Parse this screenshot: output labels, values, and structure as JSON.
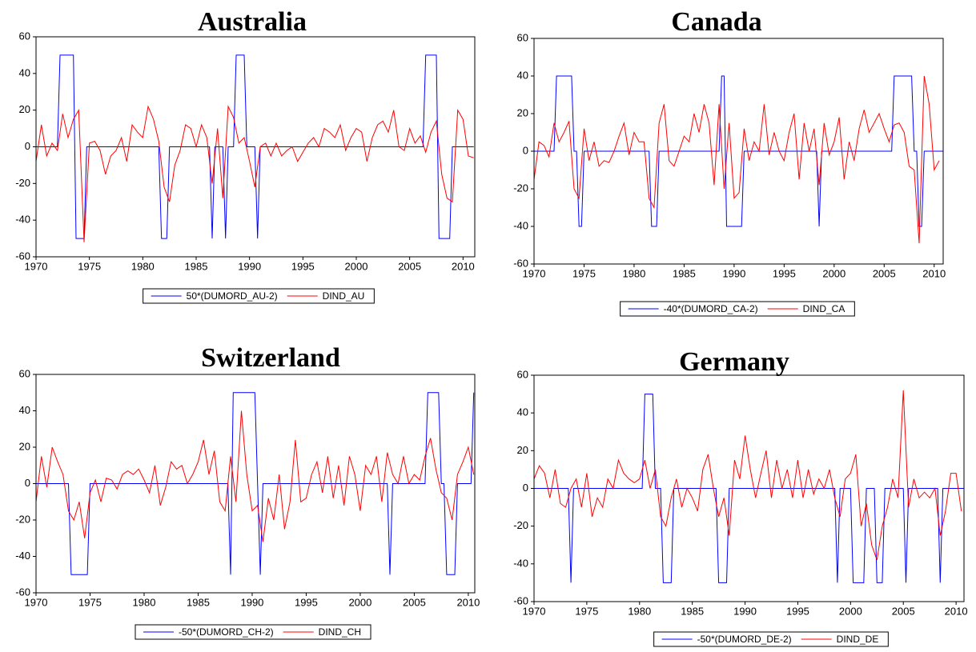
{
  "chart_data": [
    {
      "type": "line",
      "title": "Australia",
      "xlim": [
        1970,
        2011.1
      ],
      "ylim": [
        -60,
        60
      ],
      "xticks": [
        1970,
        1975,
        1980,
        1985,
        1990,
        1995,
        2000,
        2005,
        2010
      ],
      "yticks": [
        -60,
        -40,
        -20,
        0,
        20,
        40,
        60
      ],
      "legend": "bottom",
      "series": [
        {
          "name": "50*(DUMORD_AU-2)",
          "color": "#0000ff",
          "x": [
            1970,
            1972,
            1972.25,
            1973.5,
            1973.75,
            1974.5,
            1974.75,
            1981.5,
            1981.75,
            1982.25,
            1982.5,
            1986.25,
            1986.5,
            1986.75,
            1987.5,
            1987.75,
            1988,
            1988.5,
            1988.75,
            1989.5,
            1989.75,
            1990.5,
            1990.75,
            1991,
            2006.25,
            2006.5,
            2007.5,
            2007.75,
            2008.75,
            2009,
            2011
          ],
          "values": [
            0,
            0,
            50,
            50,
            -50,
            -50,
            0,
            0,
            -50,
            -50,
            0,
            0,
            -50,
            0,
            0,
            -50,
            0,
            0,
            50,
            50,
            0,
            0,
            -50,
            0,
            0,
            50,
            50,
            -50,
            -50,
            0,
            0
          ]
        },
        {
          "name": "DIND_AU",
          "color": "#ff0000",
          "x": [
            1970,
            1970.5,
            1971,
            1971.5,
            1972,
            1972.5,
            1973,
            1973.5,
            1974,
            1974.5,
            1975,
            1975.5,
            1976,
            1976.5,
            1977,
            1977.5,
            1978,
            1978.5,
            1979,
            1979.5,
            1980,
            1980.5,
            1981,
            1981.5,
            1982,
            1982.5,
            1983,
            1983.5,
            1984,
            1984.5,
            1985,
            1985.5,
            1986,
            1986.5,
            1987,
            1987.5,
            1988,
            1988.5,
            1989,
            1989.5,
            1990,
            1990.5,
            1991,
            1991.5,
            1992,
            1992.5,
            1993,
            1993.5,
            1994,
            1994.5,
            1995,
            1995.5,
            1996,
            1996.5,
            1997,
            1997.5,
            1998,
            1998.5,
            1999,
            1999.5,
            2000,
            2000.5,
            2001,
            2001.5,
            2002,
            2002.5,
            2003,
            2003.5,
            2004,
            2004.5,
            2005,
            2005.5,
            2006,
            2006.5,
            2007,
            2007.5,
            2008,
            2008.5,
            2009,
            2009.5,
            2010,
            2010.5,
            2011
          ],
          "values": [
            -8,
            12,
            -5,
            2,
            -2,
            18,
            5,
            15,
            20,
            -52,
            2,
            3,
            -2,
            -15,
            -5,
            -2,
            5,
            -8,
            12,
            8,
            5,
            22,
            15,
            3,
            -22,
            -30,
            -10,
            -2,
            12,
            10,
            0,
            12,
            5,
            -20,
            10,
            -28,
            22,
            16,
            2,
            5,
            -8,
            -22,
            0,
            2,
            -5,
            2,
            -5,
            -2,
            0,
            -8,
            -3,
            2,
            5,
            0,
            10,
            8,
            5,
            12,
            -2,
            5,
            10,
            8,
            -8,
            5,
            12,
            14,
            8,
            20,
            0,
            -2,
            10,
            2,
            6,
            -3,
            8,
            14,
            -15,
            -28,
            -30,
            20,
            15,
            -5,
            -6
          ]
        }
      ]
    },
    {
      "type": "line",
      "title": "Canada",
      "xlim": [
        1970,
        2010.9
      ],
      "ylim": [
        -60,
        60
      ],
      "xticks": [
        1970,
        1975,
        1980,
        1985,
        1990,
        1995,
        2000,
        2005,
        2010
      ],
      "yticks": [
        -60,
        -40,
        -20,
        0,
        20,
        40,
        60
      ],
      "legend": "bottom",
      "series": [
        {
          "name": "-40*(DUMORD_CA-2)",
          "color": "#0000ff",
          "x": [
            1970,
            1972,
            1972.25,
            1973.75,
            1974,
            1974.25,
            1974.5,
            1974.75,
            1975,
            1981.5,
            1981.75,
            1982.25,
            1982.5,
            1988.5,
            1988.75,
            1989,
            1989.25,
            1990.75,
            1991,
            1998.25,
            1998.5,
            1998.75,
            2005.75,
            2006,
            2007.75,
            2008,
            2008.25,
            2008.5,
            2008.75,
            2009,
            2010.9
          ],
          "values": [
            0,
            0,
            40,
            40,
            0,
            0,
            -40,
            -40,
            0,
            0,
            -40,
            -40,
            0,
            0,
            40,
            40,
            -40,
            -40,
            0,
            0,
            -40,
            0,
            0,
            40,
            40,
            0,
            0,
            -40,
            -40,
            0,
            0
          ]
        },
        {
          "name": "DIND_CA",
          "color": "#ff0000",
          "x": [
            1970,
            1970.5,
            1971,
            1971.5,
            1972,
            1972.5,
            1973,
            1973.5,
            1974,
            1974.5,
            1975,
            1975.5,
            1976,
            1976.5,
            1977,
            1977.5,
            1978,
            1978.5,
            1979,
            1979.5,
            1980,
            1980.5,
            1981,
            1981.5,
            1982,
            1982.5,
            1983,
            1983.5,
            1984,
            1984.5,
            1985,
            1985.5,
            1986,
            1986.5,
            1987,
            1987.5,
            1988,
            1988.5,
            1989,
            1989.5,
            1990,
            1990.5,
            1991,
            1991.5,
            1992,
            1992.5,
            1993,
            1993.5,
            1994,
            1994.5,
            1995,
            1995.5,
            1996,
            1996.5,
            1997,
            1997.5,
            1998,
            1998.5,
            1999,
            1999.5,
            2000,
            2000.5,
            2001,
            2001.5,
            2002,
            2002.5,
            2003,
            2003.5,
            2004,
            2004.5,
            2005,
            2005.5,
            2006,
            2006.5,
            2007,
            2007.5,
            2008,
            2008.5,
            2009,
            2009.5,
            2010,
            2010.5
          ],
          "values": [
            -15,
            5,
            3,
            -3,
            15,
            5,
            10,
            16,
            -20,
            -25,
            12,
            -5,
            5,
            -8,
            -5,
            -6,
            0,
            8,
            15,
            -2,
            10,
            5,
            5,
            -25,
            -30,
            15,
            25,
            -5,
            -8,
            0,
            8,
            5,
            20,
            10,
            25,
            15,
            -18,
            25,
            -20,
            15,
            -25,
            -22,
            12,
            -5,
            5,
            0,
            25,
            -2,
            10,
            0,
            -5,
            10,
            20,
            -15,
            15,
            0,
            12,
            -18,
            15,
            -2,
            5,
            18,
            -15,
            5,
            -5,
            12,
            22,
            10,
            15,
            20,
            12,
            5,
            14,
            15,
            10,
            -8,
            -10,
            -49,
            40,
            25,
            -10,
            -5
          ]
        }
      ]
    },
    {
      "type": "line",
      "title": "Switzerland",
      "xlim": [
        1970,
        2010.6
      ],
      "ylim": [
        -60,
        60
      ],
      "xticks": [
        1970,
        1975,
        1980,
        1985,
        1990,
        1995,
        2000,
        2005,
        2010
      ],
      "yticks": [
        -60,
        -40,
        -20,
        0,
        20,
        40,
        60
      ],
      "legend": "bottom",
      "series": [
        {
          "name": "-50*(DUMORD_CH-2)",
          "color": "#0000ff",
          "x": [
            1970,
            1973,
            1973.25,
            1974.75,
            1975,
            1987.75,
            1988,
            1988.25,
            1990.25,
            1990.5,
            1990.75,
            1991,
            2002.5,
            2002.75,
            2003,
            2006,
            2006.25,
            2007.25,
            2007.5,
            2007.75,
            2008,
            2008.75,
            2009,
            2010.25,
            2010.5
          ],
          "values": [
            0,
            0,
            -50,
            -50,
            0,
            0,
            -50,
            50,
            50,
            0,
            -50,
            0,
            0,
            -50,
            0,
            0,
            50,
            50,
            0,
            0,
            -50,
            -50,
            0,
            0,
            50
          ]
        },
        {
          "name": "DIND_CH",
          "color": "#ff0000",
          "x": [
            1970,
            1970.5,
            1971,
            1971.5,
            1972,
            1972.5,
            1973,
            1973.5,
            1974,
            1974.5,
            1975,
            1975.5,
            1976,
            1976.5,
            1977,
            1977.5,
            1978,
            1978.5,
            1979,
            1979.5,
            1980,
            1980.5,
            1981,
            1981.5,
            1982,
            1982.5,
            1983,
            1983.5,
            1984,
            1984.5,
            1985,
            1985.5,
            1986,
            1986.5,
            1987,
            1987.5,
            1988,
            1988.5,
            1989,
            1989.5,
            1990,
            1990.5,
            1991,
            1991.5,
            1992,
            1992.5,
            1993,
            1993.5,
            1994,
            1994.5,
            1995,
            1995.5,
            1996,
            1996.5,
            1997,
            1997.5,
            1998,
            1998.5,
            1999,
            1999.5,
            2000,
            2000.5,
            2001,
            2001.5,
            2002,
            2002.5,
            2003,
            2003.5,
            2004,
            2004.5,
            2005,
            2005.5,
            2006,
            2006.5,
            2007,
            2007.5,
            2008,
            2008.5,
            2009,
            2009.5,
            2010,
            2010.5
          ],
          "values": [
            -10,
            15,
            -2,
            20,
            12,
            5,
            -15,
            -20,
            -10,
            -30,
            -5,
            2,
            -10,
            3,
            2,
            -3,
            5,
            7,
            5,
            8,
            2,
            -5,
            10,
            -12,
            -2,
            12,
            8,
            10,
            0,
            5,
            12,
            24,
            5,
            18,
            -10,
            -15,
            15,
            -10,
            40,
            5,
            -15,
            -12,
            -32,
            -8,
            -20,
            5,
            -25,
            -10,
            24,
            -10,
            -8,
            5,
            12,
            -5,
            15,
            -8,
            10,
            -12,
            15,
            5,
            -15,
            10,
            5,
            15,
            -10,
            17,
            5,
            0,
            15,
            0,
            5,
            2,
            15,
            25,
            8,
            -5,
            -8,
            -20,
            5,
            12,
            20,
            5
          ]
        }
      ]
    },
    {
      "type": "line",
      "title": "Germany",
      "xlim": [
        1970,
        2010.75
      ],
      "ylim": [
        -60,
        60
      ],
      "xticks": [
        1970,
        1975,
        1980,
        1985,
        1990,
        1995,
        2000,
        2005,
        2010
      ],
      "yticks": [
        -60,
        -40,
        -20,
        0,
        20,
        40,
        60
      ],
      "legend": "bottom",
      "series": [
        {
          "name": "-50*(DUMORD_DE-2)",
          "color": "#0000ff",
          "x": [
            1970,
            1973.25,
            1973.5,
            1973.75,
            1980.25,
            1980.5,
            1981.25,
            1981.5,
            1982,
            1982.25,
            1983,
            1983.25,
            1987.25,
            1987.5,
            1988.25,
            1988.5,
            1998.5,
            1998.75,
            1999,
            2000,
            2000.25,
            2001.25,
            2001.5,
            2002.25,
            2002.5,
            2003,
            2003.25,
            2005,
            2005.25,
            2005.5,
            2008.25,
            2008.5,
            2008.75,
            2010.75
          ],
          "values": [
            0,
            0,
            -50,
            0,
            0,
            50,
            50,
            0,
            0,
            -50,
            -50,
            0,
            0,
            -50,
            -50,
            0,
            0,
            -50,
            0,
            0,
            -50,
            -50,
            0,
            0,
            -50,
            -50,
            0,
            0,
            -50,
            0,
            0,
            -50,
            0,
            0
          ]
        },
        {
          "name": "DIND_DE",
          "color": "#ff0000",
          "x": [
            1970,
            1970.5,
            1971,
            1971.5,
            1972,
            1972.5,
            1973,
            1973.5,
            1974,
            1974.5,
            1975,
            1975.5,
            1976,
            1976.5,
            1977,
            1977.5,
            1978,
            1978.5,
            1979,
            1979.5,
            1980,
            1980.5,
            1981,
            1981.5,
            1982,
            1982.5,
            1983,
            1983.5,
            1984,
            1984.5,
            1985,
            1985.5,
            1986,
            1986.5,
            1987,
            1987.5,
            1988,
            1988.5,
            1989,
            1989.5,
            1990,
            1990.5,
            1991,
            1991.5,
            1992,
            1992.5,
            1993,
            1993.5,
            1994,
            1994.5,
            1995,
            1995.5,
            1996,
            1996.5,
            1997,
            1997.5,
            1998,
            1998.5,
            1999,
            1999.5,
            2000,
            2000.5,
            2001,
            2001.5,
            2002,
            2002.5,
            2003,
            2003.5,
            2004,
            2004.5,
            2005,
            2005.5,
            2006,
            2006.5,
            2007,
            2007.5,
            2008,
            2008.5,
            2009,
            2009.5,
            2010,
            2010.5
          ],
          "values": [
            5,
            12,
            8,
            -5,
            10,
            -8,
            -10,
            0,
            5,
            -10,
            8,
            -15,
            -5,
            -10,
            5,
            0,
            15,
            8,
            5,
            3,
            5,
            15,
            0,
            10,
            -15,
            -20,
            -5,
            5,
            -10,
            0,
            -5,
            -12,
            10,
            18,
            0,
            -15,
            -5,
            -25,
            15,
            5,
            28,
            10,
            -5,
            8,
            20,
            -5,
            15,
            0,
            10,
            -5,
            15,
            -5,
            10,
            -3,
            5,
            0,
            10,
            -5,
            -15,
            5,
            8,
            18,
            -20,
            -8,
            -30,
            -38,
            -20,
            -10,
            5,
            -5,
            52,
            -10,
            5,
            -5,
            -2,
            -5,
            0,
            -25,
            -12,
            8,
            8,
            -12
          ]
        }
      ]
    }
  ]
}
